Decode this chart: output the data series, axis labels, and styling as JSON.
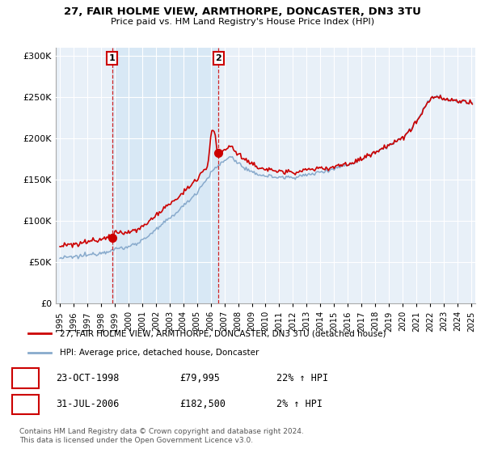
{
  "title": "27, FAIR HOLME VIEW, ARMTHORPE, DONCASTER, DN3 3TU",
  "subtitle": "Price paid vs. HM Land Registry's House Price Index (HPI)",
  "legend_line1": "27, FAIR HOLME VIEW, ARMTHORPE, DONCASTER, DN3 3TU (detached house)",
  "legend_line2": "HPI: Average price, detached house, Doncaster",
  "sale1_date": "23-OCT-1998",
  "sale1_price": "£79,995",
  "sale1_hpi": "22% ↑ HPI",
  "sale1_year": 1998.8,
  "sale1_value": 79995,
  "sale2_date": "31-JUL-2006",
  "sale2_price": "£182,500",
  "sale2_hpi": "2% ↑ HPI",
  "sale2_year": 2006.58,
  "sale2_value": 182500,
  "footer": "Contains HM Land Registry data © Crown copyright and database right 2024.\nThis data is licensed under the Open Government Licence v3.0.",
  "red_color": "#cc0000",
  "blue_color": "#88aacc",
  "shade_color": "#d8e8f5",
  "bg_color": "#e8f0f8",
  "ylim": [
    0,
    310000
  ],
  "xlim_start": 1994.7,
  "xlim_end": 2025.3
}
